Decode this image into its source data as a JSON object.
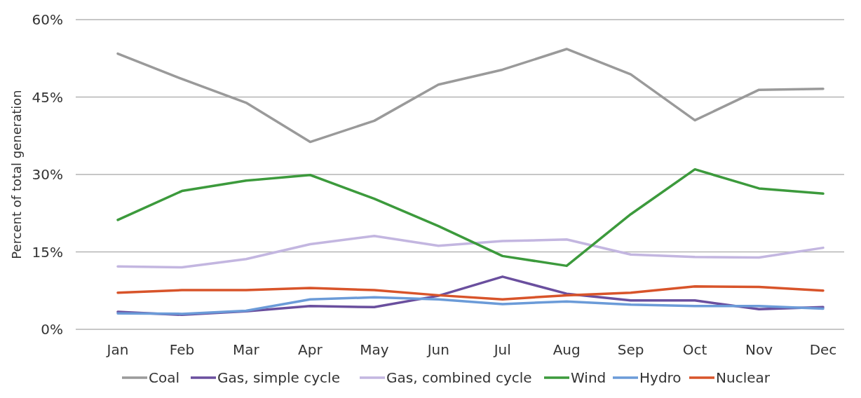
{
  "chart_data": {
    "type": "line",
    "ylabel": "Percent of total generation",
    "categories": [
      "Jan",
      "Feb",
      "Mar",
      "Apr",
      "May",
      "Jun",
      "Jul",
      "Aug",
      "Sep",
      "Oct",
      "Nov",
      "Dec"
    ],
    "ylim": [
      0,
      60
    ],
    "yticks": [
      {
        "value": 0,
        "label": "0%"
      },
      {
        "value": 15,
        "label": "15%"
      },
      {
        "value": 30,
        "label": "30%"
      },
      {
        "value": 45,
        "label": "45%"
      },
      {
        "value": 60,
        "label": "60%"
      }
    ],
    "grid": "y",
    "legend": "bottom",
    "marker": "none",
    "line_style": "solid",
    "series": [
      {
        "name": "Coal",
        "color": "#9a9a9a",
        "values": [
          53.4,
          48.5,
          43.9,
          36.3,
          40.4,
          47.4,
          50.3,
          54.3,
          49.4,
          40.5,
          46.4,
          46.6
        ]
      },
      {
        "name": "Gas, simple cycle",
        "color": "#6a4f9e",
        "values": [
          3.4,
          2.8,
          3.5,
          4.5,
          4.3,
          6.5,
          10.2,
          6.9,
          5.6,
          5.6,
          3.9,
          4.3
        ]
      },
      {
        "name": "Gas, combined cycle",
        "color": "#c3b6e0",
        "values": [
          12.2,
          12,
          13.6,
          16.5,
          18.1,
          16.2,
          17.1,
          17.4,
          14.5,
          14,
          13.9,
          15.8
        ]
      },
      {
        "name": "Wind",
        "color": "#3c9a3c",
        "values": [
          21.2,
          26.8,
          28.8,
          29.9,
          25.3,
          20,
          14.2,
          12.3,
          22.3,
          31,
          27.3,
          26.3
        ]
      },
      {
        "name": "Hydro",
        "color": "#6b9bd8",
        "values": [
          3.1,
          3,
          3.6,
          5.8,
          6.2,
          5.8,
          4.9,
          5.4,
          4.8,
          4.5,
          4.5,
          4
        ]
      },
      {
        "name": "Nuclear",
        "color": "#d8542a",
        "values": [
          7.1,
          7.6,
          7.6,
          8,
          7.6,
          6.6,
          5.8,
          6.6,
          7.1,
          8.3,
          8.2,
          7.5
        ]
      }
    ]
  }
}
